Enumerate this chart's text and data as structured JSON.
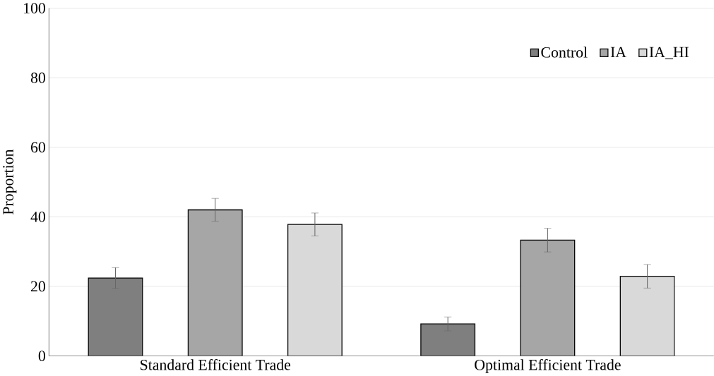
{
  "chart_data": {
    "type": "bar",
    "ylabel": "Proportion",
    "categories": [
      "Standard Efficient Trade",
      "Optimal Efficient Trade"
    ],
    "series": [
      {
        "name": "Control",
        "color": "#7f7f7f",
        "values": [
          22.4,
          9.2
        ],
        "errors": [
          3,
          2
        ]
      },
      {
        "name": "IA",
        "color": "#a6a6a6",
        "values": [
          42.0,
          33.3
        ],
        "errors": [
          3.3,
          3.4
        ]
      },
      {
        "name": "IA_HI",
        "color": "#d9d9d9",
        "values": [
          37.8,
          22.9
        ],
        "errors": [
          3.3,
          3.4
        ]
      }
    ],
    "ylim": [
      0,
      100
    ],
    "yticks": [
      0,
      20,
      40,
      60,
      80,
      100
    ],
    "grid": "y",
    "legend": "top right"
  }
}
